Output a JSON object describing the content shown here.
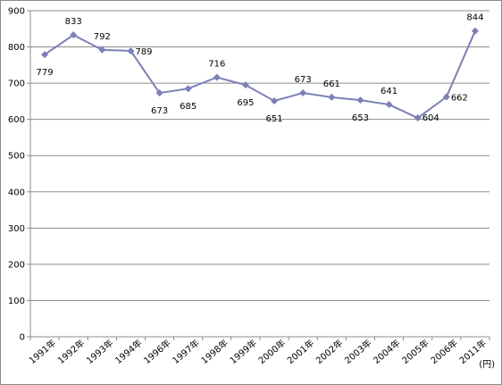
{
  "chart_data": {
    "type": "line",
    "title": "",
    "xlabel": "",
    "ylabel": "",
    "unit": "(円)",
    "categories": [
      "1991年",
      "1992年",
      "1993年",
      "1994年",
      "1996年",
      "1997年",
      "1998年",
      "1999年",
      "2000年",
      "2001年",
      "2002年",
      "2003年",
      "2004年",
      "2005年",
      "2006年",
      "2011年"
    ],
    "series": [
      {
        "values": [
          779,
          833,
          792,
          789,
          673,
          685,
          716,
          695,
          651,
          673,
          661,
          653,
          641,
          604,
          662,
          844
        ]
      }
    ],
    "ylim": [
      0,
      900
    ],
    "yticks": [
      0,
      100,
      200,
      300,
      400,
      500,
      600,
      700,
      800,
      900
    ],
    "grid": true,
    "legend": "none",
    "colors": {
      "line": "#7b7fb5",
      "marker": "#7b7fb5",
      "grid": "#8c8c8c",
      "axis": "#8c8c8c"
    }
  }
}
